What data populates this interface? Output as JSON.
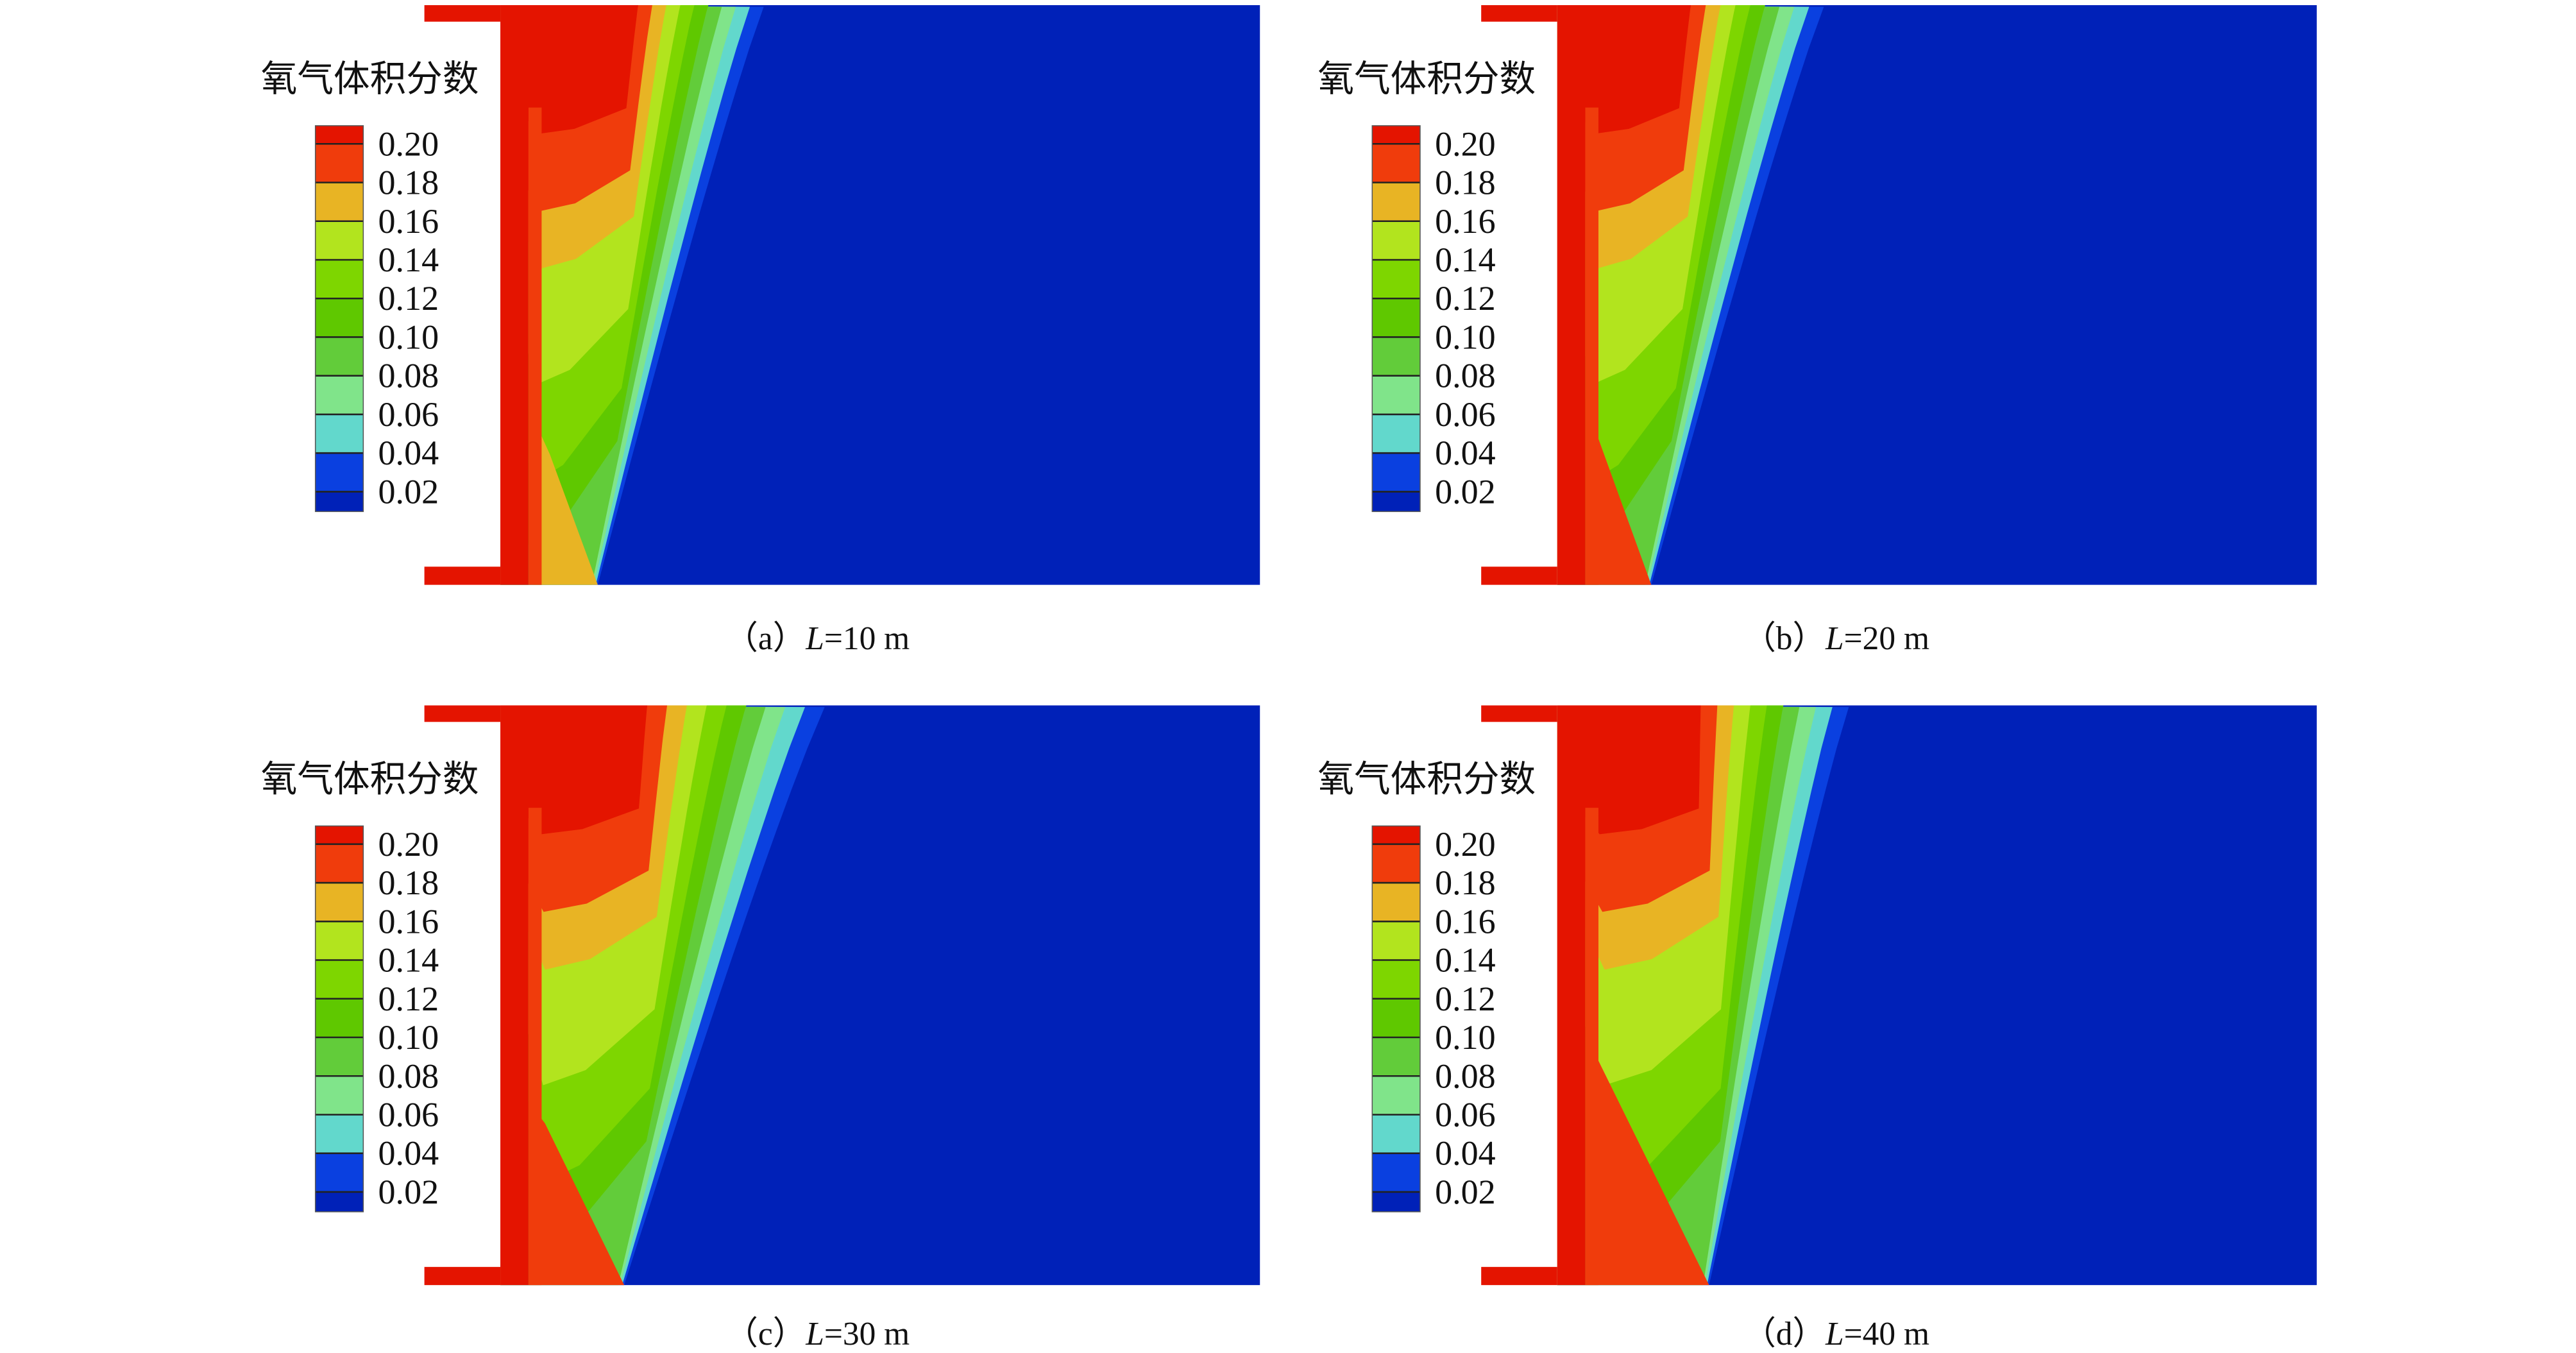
{
  "chart_data": {
    "type": "heatmap",
    "subtype": "contour",
    "colorbar": {
      "title": "氧气体积分数",
      "levels": [
        "0.20",
        "0.18",
        "0.16",
        "0.14",
        "0.12",
        "0.10",
        "0.08",
        "0.06",
        "0.04",
        "0.02"
      ],
      "band_colors": [
        "#e41400",
        "#f03c0c",
        "#e8b424",
        "#b2e41e",
        "#7ed600",
        "#5fc800",
        "#62cc3a",
        "#80e48a",
        "#62d8cc",
        "#0a40e0",
        "#0021b8"
      ],
      "placement": "left, inside each panel"
    },
    "panels": [
      {
        "label": "（a）",
        "var": "L",
        "value": "=10 m"
      },
      {
        "label": "（b）",
        "var": "L",
        "value": "=20 m"
      },
      {
        "label": "（c）",
        "var": "L",
        "value": "=30 m"
      },
      {
        "label": "（d）",
        "var": "L",
        "value": "=40 m"
      }
    ]
  }
}
